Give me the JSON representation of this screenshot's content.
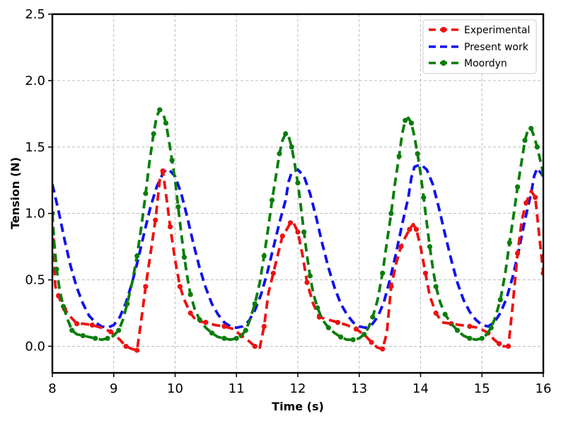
{
  "chart_data": {
    "type": "line",
    "title": "",
    "xlabel": "Time (s)",
    "ylabel": "Tension (N)",
    "xlim": [
      8,
      16
    ],
    "ylim": [
      -0.2,
      2.5
    ],
    "xticks": [
      8,
      9,
      10,
      11,
      12,
      13,
      14,
      15,
      16
    ],
    "xtick_labels": [
      "8",
      "9",
      "10",
      "11",
      "12",
      "13",
      "14",
      "15",
      "16"
    ],
    "yticks": [
      0.0,
      0.5,
      1.0,
      1.5,
      2.0,
      2.5
    ],
    "ytick_labels": [
      "0.0",
      "0.5",
      "1.0",
      "1.5",
      "2.0",
      "2.5"
    ],
    "grid": true,
    "legend_position": "top-right",
    "series": [
      {
        "name": "Experimental",
        "color": "#ee1111",
        "marker": "circle",
        "x": [
          8.0,
          8.05,
          8.1,
          8.15,
          8.2,
          8.3,
          8.4,
          8.5,
          8.65,
          8.8,
          8.95,
          9.1,
          9.2,
          9.3,
          9.38,
          9.45,
          9.52,
          9.6,
          9.68,
          9.75,
          9.8,
          9.85,
          9.92,
          10.0,
          10.08,
          10.15,
          10.25,
          10.35,
          10.5,
          10.65,
          10.8,
          10.95,
          11.08,
          11.2,
          11.3,
          11.38,
          11.45,
          11.52,
          11.6,
          11.68,
          11.75,
          11.82,
          11.88,
          11.93,
          12.0,
          12.08,
          12.15,
          12.25,
          12.35,
          12.5,
          12.65,
          12.8,
          12.95,
          13.1,
          13.2,
          13.3,
          13.38,
          13.45,
          13.52,
          13.6,
          13.68,
          13.75,
          13.82,
          13.88,
          13.93,
          14.0,
          14.08,
          14.15,
          14.25,
          14.35,
          14.5,
          14.65,
          14.8,
          14.95,
          15.1,
          15.2,
          15.28,
          15.35,
          15.43,
          15.5,
          15.58,
          15.65,
          15.72,
          15.8,
          15.87,
          15.93,
          16.0
        ],
        "y": [
          0.8,
          0.45,
          0.38,
          0.32,
          0.28,
          0.22,
          0.17,
          0.17,
          0.16,
          0.14,
          0.11,
          0.05,
          0.0,
          -0.02,
          -0.03,
          0.2,
          0.45,
          0.7,
          0.95,
          1.25,
          1.32,
          1.15,
          0.9,
          0.65,
          0.45,
          0.35,
          0.25,
          0.19,
          0.18,
          0.16,
          0.15,
          0.13,
          0.08,
          0.04,
          0.0,
          -0.01,
          0.15,
          0.4,
          0.55,
          0.7,
          0.83,
          0.88,
          0.93,
          0.93,
          0.86,
          0.68,
          0.48,
          0.32,
          0.22,
          0.2,
          0.18,
          0.16,
          0.13,
          0.08,
          0.03,
          -0.01,
          -0.02,
          0.1,
          0.45,
          0.62,
          0.75,
          0.82,
          0.88,
          0.92,
          0.88,
          0.75,
          0.55,
          0.38,
          0.25,
          0.18,
          0.17,
          0.16,
          0.15,
          0.14,
          0.1,
          0.05,
          0.02,
          0.0,
          0.0,
          0.3,
          0.7,
          0.95,
          1.08,
          1.17,
          1.12,
          0.85,
          0.55
        ]
      },
      {
        "name": "Present work",
        "color": "#1010ee",
        "marker": "none",
        "x": [
          8.0,
          8.1,
          8.2,
          8.3,
          8.4,
          8.5,
          8.6,
          8.7,
          8.8,
          8.9,
          9.0,
          9.1,
          9.2,
          9.3,
          9.4,
          9.5,
          9.6,
          9.7,
          9.8,
          9.85,
          9.9,
          10.0,
          10.1,
          10.2,
          10.3,
          10.4,
          10.5,
          10.6,
          10.7,
          10.8,
          10.9,
          11.0,
          11.1,
          11.2,
          11.3,
          11.4,
          11.5,
          11.6,
          11.7,
          11.8,
          11.85,
          11.9,
          12.0,
          12.1,
          12.2,
          12.3,
          12.4,
          12.5,
          12.6,
          12.7,
          12.8,
          12.9,
          13.0,
          13.1,
          13.2,
          13.3,
          13.4,
          13.5,
          13.6,
          13.7,
          13.8,
          13.85,
          13.9,
          14.0,
          14.1,
          14.2,
          14.3,
          14.4,
          14.5,
          14.6,
          14.7,
          14.8,
          14.9,
          15.0,
          15.1,
          15.2,
          15.3,
          15.4,
          15.5,
          15.6,
          15.7,
          15.8,
          15.85,
          15.9,
          16.0
        ],
        "y": [
          1.22,
          1.02,
          0.8,
          0.6,
          0.44,
          0.32,
          0.23,
          0.18,
          0.15,
          0.14,
          0.16,
          0.22,
          0.33,
          0.48,
          0.66,
          0.86,
          1.05,
          1.2,
          1.3,
          1.33,
          1.33,
          1.28,
          1.15,
          0.97,
          0.77,
          0.59,
          0.44,
          0.32,
          0.24,
          0.18,
          0.15,
          0.14,
          0.15,
          0.19,
          0.27,
          0.39,
          0.55,
          0.74,
          0.93,
          1.1,
          1.24,
          1.31,
          1.33,
          1.28,
          1.15,
          0.97,
          0.77,
          0.59,
          0.44,
          0.32,
          0.24,
          0.18,
          0.15,
          0.14,
          0.16,
          0.22,
          0.33,
          0.5,
          0.7,
          0.92,
          1.12,
          1.27,
          1.35,
          1.37,
          1.33,
          1.22,
          1.04,
          0.84,
          0.65,
          0.48,
          0.35,
          0.26,
          0.2,
          0.16,
          0.15,
          0.18,
          0.25,
          0.36,
          0.52,
          0.72,
          0.95,
          1.15,
          1.28,
          1.34,
          1.28
        ]
      },
      {
        "name": "Moordyn",
        "color": "#0a7d0a",
        "marker": "circle",
        "x": [
          8.0,
          8.03,
          8.07,
          8.12,
          8.18,
          8.25,
          8.32,
          8.4,
          8.5,
          8.6,
          8.7,
          8.8,
          8.9,
          9.0,
          9.08,
          9.15,
          9.22,
          9.3,
          9.38,
          9.45,
          9.52,
          9.58,
          9.65,
          9.7,
          9.75,
          9.8,
          9.85,
          9.9,
          9.95,
          10.0,
          10.05,
          10.1,
          10.15,
          10.2,
          10.25,
          10.32,
          10.4,
          10.5,
          10.6,
          10.7,
          10.8,
          10.9,
          11.0,
          11.08,
          11.15,
          11.22,
          11.3,
          11.38,
          11.45,
          11.52,
          11.58,
          11.65,
          11.7,
          11.75,
          11.8,
          11.85,
          11.9,
          11.95,
          12.0,
          12.05,
          12.1,
          12.15,
          12.2,
          12.25,
          12.32,
          12.4,
          12.5,
          12.6,
          12.7,
          12.8,
          12.9,
          13.0,
          13.08,
          13.15,
          13.22,
          13.3,
          13.38,
          13.45,
          13.52,
          13.58,
          13.65,
          13.7,
          13.75,
          13.8,
          13.85,
          13.9,
          13.95,
          14.0,
          14.05,
          14.1,
          14.15,
          14.2,
          14.25,
          14.32,
          14.4,
          14.5,
          14.6,
          14.7,
          14.8,
          14.9,
          15.0,
          15.08,
          15.15,
          15.22,
          15.3,
          15.38,
          15.45,
          15.52,
          15.58,
          15.65,
          15.7,
          15.75,
          15.8,
          15.85,
          15.9,
          15.95,
          16.0
        ],
        "y": [
          1.0,
          0.78,
          0.58,
          0.42,
          0.3,
          0.2,
          0.12,
          0.09,
          0.08,
          0.07,
          0.06,
          0.05,
          0.06,
          0.08,
          0.12,
          0.2,
          0.32,
          0.48,
          0.68,
          0.9,
          1.15,
          1.38,
          1.6,
          1.73,
          1.78,
          1.76,
          1.68,
          1.55,
          1.4,
          1.25,
          1.05,
          0.85,
          0.67,
          0.52,
          0.39,
          0.28,
          0.2,
          0.14,
          0.1,
          0.07,
          0.06,
          0.05,
          0.06,
          0.08,
          0.12,
          0.2,
          0.32,
          0.48,
          0.68,
          0.9,
          1.1,
          1.3,
          1.45,
          1.55,
          1.6,
          1.58,
          1.5,
          1.37,
          1.23,
          1.05,
          0.86,
          0.68,
          0.53,
          0.4,
          0.29,
          0.2,
          0.14,
          0.1,
          0.07,
          0.05,
          0.05,
          0.06,
          0.09,
          0.14,
          0.22,
          0.35,
          0.55,
          0.78,
          1.0,
          1.22,
          1.43,
          1.6,
          1.7,
          1.72,
          1.68,
          1.58,
          1.45,
          1.3,
          1.12,
          0.93,
          0.75,
          0.59,
          0.45,
          0.33,
          0.24,
          0.17,
          0.12,
          0.08,
          0.06,
          0.05,
          0.06,
          0.09,
          0.14,
          0.22,
          0.35,
          0.55,
          0.78,
          1.0,
          1.2,
          1.4,
          1.55,
          1.63,
          1.64,
          1.58,
          1.5,
          1.4,
          1.3
        ]
      }
    ]
  }
}
